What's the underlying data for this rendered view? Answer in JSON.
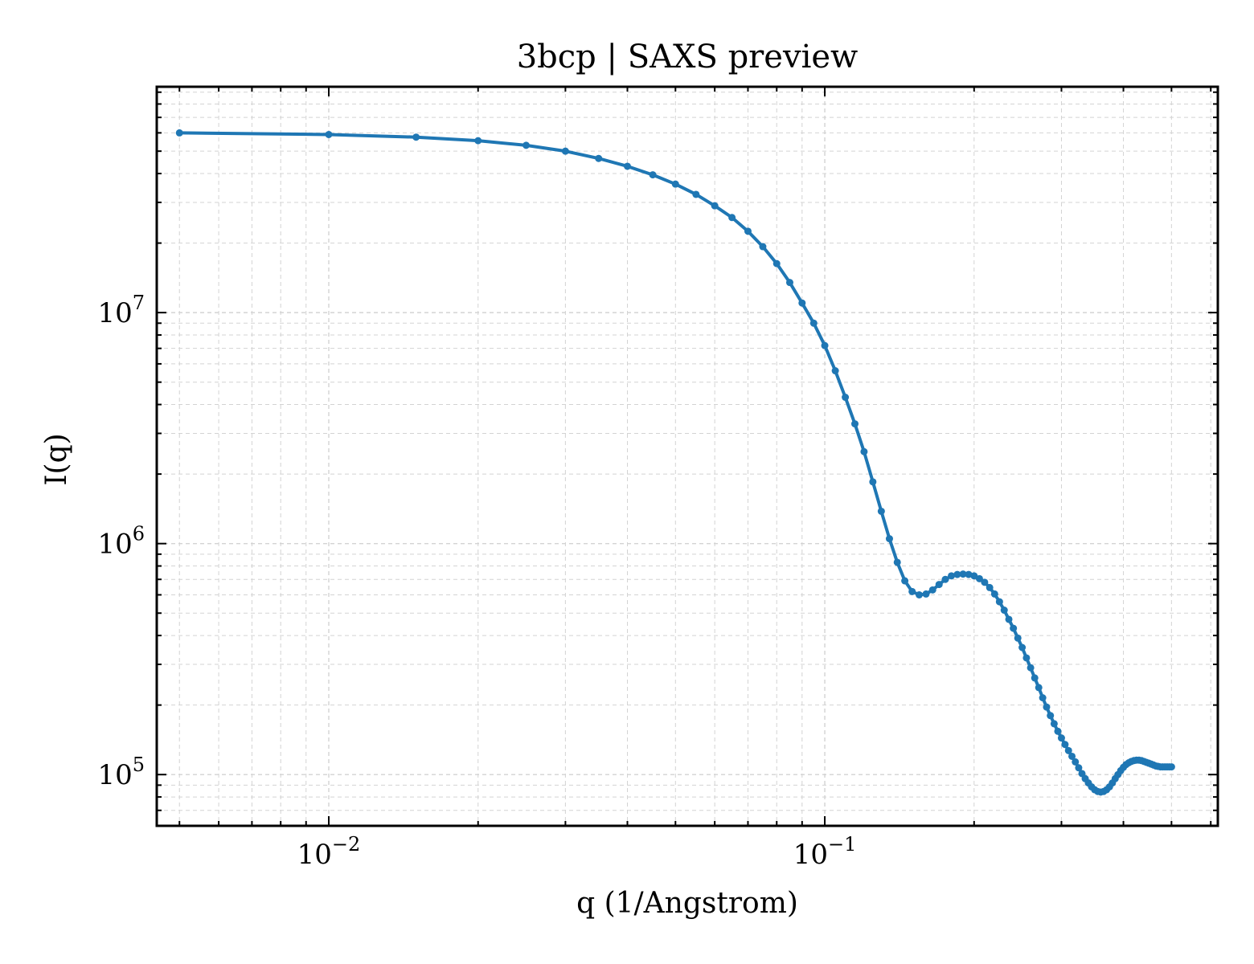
{
  "chart_data": {
    "type": "line",
    "title": "3bcp | SAXS preview",
    "xlabel": "q (1/Angstrom)",
    "ylabel": "I(q)",
    "xscale": "log",
    "yscale": "log",
    "xlim": [
      0.0045,
      0.62
    ],
    "ylim": [
      60000,
      95000000
    ],
    "grid": true,
    "legend": "none",
    "x_ticks": [
      {
        "base": "10",
        "exp": "−2",
        "value": 0.01
      },
      {
        "base": "10",
        "exp": "−1",
        "value": 0.1
      }
    ],
    "y_ticks": [
      {
        "base": "10",
        "exp": "5",
        "value": 100000
      },
      {
        "base": "10",
        "exp": "6",
        "value": 1000000
      },
      {
        "base": "10",
        "exp": "7",
        "value": 10000000
      }
    ],
    "colors": {
      "line": "#1f77b4",
      "grid": "#d3d3d3",
      "axes": "#000000"
    },
    "series": [
      {
        "x": [
          0.005,
          0.01,
          0.015,
          0.02,
          0.025,
          0.03,
          0.035,
          0.04,
          0.045,
          0.05,
          0.055,
          0.06,
          0.065,
          0.07,
          0.075,
          0.08,
          0.085,
          0.09,
          0.095,
          0.1,
          0.105,
          0.11,
          0.115,
          0.12,
          0.125,
          0.13,
          0.135,
          0.14,
          0.145,
          0.15,
          0.155,
          0.16,
          0.165,
          0.17,
          0.175,
          0.18,
          0.185,
          0.19,
          0.195,
          0.2,
          0.205,
          0.21,
          0.215,
          0.22,
          0.225,
          0.23,
          0.235,
          0.24,
          0.245,
          0.25,
          0.255,
          0.26,
          0.265,
          0.27,
          0.275,
          0.28,
          0.285,
          0.29,
          0.295,
          0.3,
          0.305,
          0.31,
          0.315,
          0.32,
          0.325,
          0.33,
          0.335,
          0.34,
          0.345,
          0.35,
          0.355,
          0.36,
          0.365,
          0.37,
          0.375,
          0.38,
          0.385,
          0.39,
          0.395,
          0.4,
          0.405,
          0.41,
          0.415,
          0.42,
          0.425,
          0.43,
          0.435,
          0.44,
          0.445,
          0.45,
          0.455,
          0.46,
          0.465,
          0.47,
          0.475,
          0.48,
          0.485,
          0.49,
          0.495,
          0.5
        ],
        "y": [
          60000000,
          59000000,
          57500000,
          55500000,
          53000000,
          50000000,
          46500000,
          43000000,
          39500000,
          36000000,
          32500000,
          29000000,
          25800000,
          22500000,
          19300000,
          16300000,
          13500000,
          11000000,
          9000000,
          7200000,
          5600000,
          4300000,
          3300000,
          2500000,
          1850000,
          1380000,
          1050000,
          830000,
          690000,
          620000,
          600000,
          605000,
          630000,
          665000,
          700000,
          725000,
          735000,
          738000,
          735000,
          725000,
          705000,
          680000,
          645000,
          605000,
          560000,
          515000,
          470000,
          430000,
          390000,
          355000,
          320000,
          290000,
          262000,
          238000,
          215000,
          196000,
          180000,
          166000,
          154000,
          144000,
          135000,
          127000,
          120000,
          113500,
          107000,
          101000,
          96000,
          92000,
          88500,
          86000,
          84500,
          84000,
          84500,
          86000,
          88500,
          92000,
          96000,
          100000,
          104000,
          107500,
          110500,
          112500,
          114000,
          115000,
          115500,
          115500,
          115000,
          114000,
          113000,
          112000,
          111000,
          110000,
          109000,
          108500,
          108000,
          108000,
          108000,
          108000,
          108000,
          108000
        ]
      }
    ]
  }
}
